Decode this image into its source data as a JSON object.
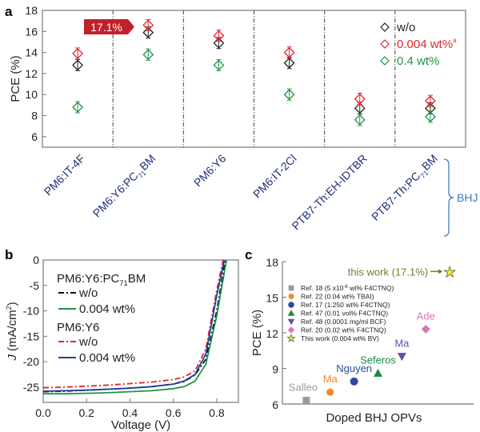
{
  "panel_labels": {
    "a": "a",
    "b": "b",
    "c": "c"
  },
  "chart_data": [
    {
      "panel": "a",
      "type": "scatter",
      "ylabel": "PCE (%)",
      "ylim": [
        5,
        18
      ],
      "yticks": [
        6,
        8,
        10,
        12,
        14,
        16,
        18
      ],
      "categories": [
        [
          "PM6:IT-4F"
        ],
        [
          "PM6:Y6:PC",
          "71",
          "BM"
        ],
        [
          "PM6:Y6"
        ],
        [
          "PM6:IT-2Cl"
        ],
        [
          "PTB7-Th:EH-IDTBR"
        ],
        [
          "PTB7-Th:PC",
          "71",
          "BM"
        ]
      ],
      "series": [
        {
          "name": "w/o",
          "color": "#222222",
          "values": [
            12.8,
            15.9,
            14.9,
            13.0,
            8.7,
            8.7
          ]
        },
        {
          "name": "0.004 wt%",
          "superscript": "a",
          "color": "#e3262c",
          "values": [
            13.9,
            16.6,
            15.6,
            14.0,
            9.6,
            9.4
          ]
        },
        {
          "name": "0.4 wt%",
          "color": "#1f9447",
          "values": [
            8.8,
            13.8,
            12.8,
            10.0,
            7.6,
            7.9
          ]
        }
      ],
      "callout": {
        "text": "17.1%",
        "color": "#c0202a"
      },
      "group_label": {
        "text": "BHJ",
        "color": "#3a7fc0"
      },
      "legend": "top-right"
    },
    {
      "panel": "b",
      "type": "line",
      "xlabel": "Voltage (V)",
      "ylabel": "J (mA/cm2)",
      "ylabel_parts": {
        "j": "J",
        "unit": "(mA/cm",
        "sup": "2",
        "close": ")"
      },
      "xlim": [
        0,
        0.9
      ],
      "ylim": [
        -28,
        0
      ],
      "xticks": [
        "0.0",
        "0.2",
        "0.4",
        "0.6",
        "0.8"
      ],
      "yticks": [
        "0",
        "-5",
        "-10",
        "-15",
        "-20",
        "-25"
      ],
      "legend_groups": [
        {
          "title": [
            "PM6:Y6:PC",
            "71",
            "BM"
          ]
        },
        {
          "title": [
            "PM6:Y6"
          ]
        }
      ],
      "series": [
        {
          "group": 0,
          "name": "w/o",
          "color": "#111111",
          "dash": "dashdot",
          "x": [
            0,
            0.1,
            0.2,
            0.3,
            0.4,
            0.5,
            0.6,
            0.65,
            0.7,
            0.75,
            0.8,
            0.84
          ],
          "y": [
            -25.9,
            -25.8,
            -25.6,
            -25.4,
            -25.2,
            -24.9,
            -24.4,
            -23.9,
            -22.6,
            -19.5,
            -10,
            0
          ]
        },
        {
          "group": 0,
          "name": "0.004 wt%",
          "color": "#1f9447",
          "dash": "solid",
          "x": [
            0,
            0.1,
            0.2,
            0.3,
            0.4,
            0.5,
            0.6,
            0.65,
            0.7,
            0.75,
            0.8,
            0.845
          ],
          "y": [
            -26.3,
            -26.3,
            -26.2,
            -26.1,
            -25.9,
            -25.7,
            -25.3,
            -24.9,
            -23.8,
            -20.5,
            -11,
            0
          ]
        },
        {
          "group": 1,
          "name": "w/o",
          "color": "#e3262c",
          "dash": "dashdot",
          "x": [
            0,
            0.1,
            0.2,
            0.3,
            0.4,
            0.5,
            0.6,
            0.65,
            0.7,
            0.75,
            0.8,
            0.83
          ],
          "y": [
            -25.1,
            -25.0,
            -24.8,
            -24.6,
            -24.3,
            -24.0,
            -23.5,
            -23.0,
            -21.8,
            -17.5,
            -6,
            0
          ]
        },
        {
          "group": 1,
          "name": "0.004 wt%",
          "color": "#23409a",
          "dash": "solid",
          "x": [
            0,
            0.1,
            0.2,
            0.3,
            0.4,
            0.5,
            0.6,
            0.65,
            0.7,
            0.75,
            0.8,
            0.835
          ],
          "y": [
            -25.8,
            -25.7,
            -25.6,
            -25.4,
            -25.2,
            -24.9,
            -24.4,
            -23.8,
            -22.5,
            -18.5,
            -7,
            0
          ]
        }
      ]
    },
    {
      "panel": "c",
      "type": "scatter",
      "xlabel": "Doped BHJ OPVs",
      "ylabel": "PCE (%)",
      "ylim": [
        6,
        18
      ],
      "yticks": [
        6,
        9,
        12,
        15,
        18
      ],
      "annotation": "this work (17.1%)",
      "annotation_color": "#7a7a2a",
      "points": [
        {
          "label": "Salleo",
          "legend": "Ref. 18 (5 x10",
          "legend_sup": "-6",
          "legend_tail": " wt% F4CTNQ)",
          "x": 1,
          "y": 6.3,
          "marker": "square",
          "color": "#9a9a9a"
        },
        {
          "label": "Ma",
          "legend": "Ref. 22 (0.04 wt% TBAI)",
          "x": 2,
          "y": 7.0,
          "marker": "hexagon",
          "color": "#f08a2c"
        },
        {
          "label": "Nguyen",
          "legend": "Ref. 17 (1:250 wt% F4CTNQ)",
          "x": 3,
          "y": 7.9,
          "marker": "circle",
          "color": "#2e4aa0"
        },
        {
          "label": "Seferos",
          "legend": "Ref. 47 (0.01 vol% F4CTNQ)",
          "x": 4,
          "y": 8.6,
          "marker": "triangle-up",
          "color": "#1a8a45"
        },
        {
          "label": "Ma",
          "legend": "Ref. 48 (0.0001 mg/ml BCF)",
          "x": 5,
          "y": 10.0,
          "marker": "triangle-down",
          "color": "#6a4aa8"
        },
        {
          "label": "Ade",
          "legend": "Ref. 20 (0.02 wt% F4CTNQ)",
          "x": 6,
          "y": 12.3,
          "marker": "diamond",
          "color": "#d47ab8"
        },
        {
          "label": "",
          "legend": "This work (0.004 wt% BV)",
          "x": 7,
          "y": 17.1,
          "marker": "star",
          "color": "#f3ee3a"
        }
      ],
      "xlim": [
        0,
        8
      ]
    }
  ]
}
